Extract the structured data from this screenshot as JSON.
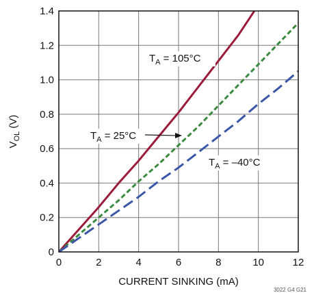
{
  "chart_data": {
    "type": "line",
    "xlabel": "CURRENT SINKING (mA)",
    "ylabel_main": "V",
    "ylabel_sub": "OL",
    "ylabel_unit": "(V)",
    "xlim": [
      0,
      12
    ],
    "ylim": [
      0,
      1.4
    ],
    "xticks": [
      "0",
      "2",
      "4",
      "6",
      "8",
      "10",
      "12"
    ],
    "yticks": [
      "0",
      "0.2",
      "0.4",
      "0.6",
      "0.8",
      "1.0",
      "1.2",
      "1.4"
    ],
    "grid": true,
    "figure_code": "3022 G4 G21",
    "series": [
      {
        "name_main": "T",
        "name_sub": "A",
        "name_rest": " = 105°C",
        "color": "#9b1b3a",
        "style": "solid",
        "x": [
          0,
          1,
          2,
          3,
          4,
          5,
          6,
          7,
          8,
          9,
          9.8
        ],
        "y": [
          0,
          0.13,
          0.26,
          0.4,
          0.53,
          0.67,
          0.81,
          0.96,
          1.11,
          1.26,
          1.4
        ]
      },
      {
        "name_main": "T",
        "name_sub": "A",
        "name_rest": " = 25°C",
        "color": "#3a8a3e",
        "style": "short-dash",
        "x": [
          0,
          1,
          2,
          3,
          4,
          5,
          6,
          7,
          8,
          9,
          10,
          11,
          12
        ],
        "y": [
          0,
          0.1,
          0.2,
          0.3,
          0.41,
          0.51,
          0.62,
          0.73,
          0.85,
          0.97,
          1.09,
          1.21,
          1.33
        ]
      },
      {
        "name_main": "T",
        "name_sub": "A",
        "name_rest": " = –40°C",
        "color": "#3a56a8",
        "style": "long-dash",
        "x": [
          0,
          1,
          2,
          3,
          4,
          5,
          6,
          7,
          8,
          9,
          10,
          11,
          12
        ],
        "y": [
          0,
          0.08,
          0.16,
          0.24,
          0.32,
          0.41,
          0.49,
          0.58,
          0.67,
          0.76,
          0.86,
          0.95,
          1.05
        ]
      }
    ]
  }
}
